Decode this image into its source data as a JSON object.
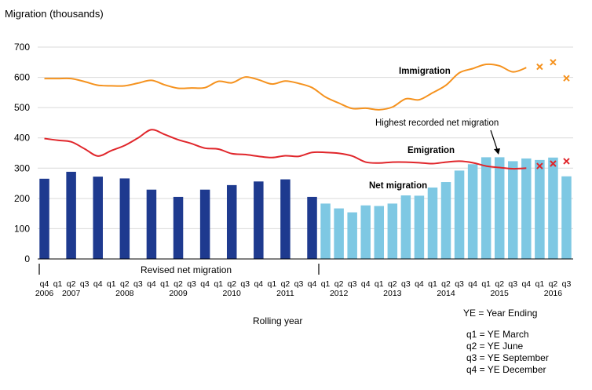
{
  "chart_data": {
    "type": "bar",
    "ylabel": "Migration (thousands)",
    "xlabel": "Rolling year",
    "ylim": [
      0,
      700
    ],
    "yticks": [
      0,
      100,
      200,
      300,
      400,
      500,
      600,
      700
    ],
    "grid": true,
    "quarters": [
      "q4",
      "q1",
      "q2",
      "q3",
      "q4",
      "q1",
      "q2",
      "q3",
      "q4",
      "q1",
      "q2",
      "q3",
      "q4",
      "q1",
      "q2",
      "q3",
      "q4",
      "q1",
      "q2",
      "q3",
      "q4",
      "q1",
      "q2",
      "q3",
      "q4",
      "q1",
      "q2",
      "q3",
      "q4",
      "q1",
      "q2",
      "q3",
      "q4",
      "q1",
      "q2",
      "q3",
      "q4",
      "q1",
      "q2",
      "q3"
    ],
    "years": [
      {
        "label": "2006",
        "index": 0
      },
      {
        "label": "2007",
        "index": 2
      },
      {
        "label": "2008",
        "index": 6
      },
      {
        "label": "2009",
        "index": 10
      },
      {
        "label": "2010",
        "index": 14
      },
      {
        "label": "2011",
        "index": 18
      },
      {
        "label": "2012",
        "index": 22
      },
      {
        "label": "2013",
        "index": 26
      },
      {
        "label": "2014",
        "index": 30
      },
      {
        "label": "2015",
        "index": 34
      },
      {
        "label": "2016",
        "index": 38
      }
    ],
    "net_migration_revised": [
      {
        "i": 0,
        "value": 265
      },
      {
        "i": 2,
        "value": 288
      },
      {
        "i": 4,
        "value": 272
      },
      {
        "i": 6,
        "value": 266
      },
      {
        "i": 8,
        "value": 229
      },
      {
        "i": 10,
        "value": 205
      },
      {
        "i": 12,
        "value": 229
      },
      {
        "i": 14,
        "value": 244
      },
      {
        "i": 16,
        "value": 256
      },
      {
        "i": 18,
        "value": 263
      },
      {
        "i": 20,
        "value": 205
      }
    ],
    "net_migration": [
      {
        "i": 21,
        "value": 183
      },
      {
        "i": 22,
        "value": 167
      },
      {
        "i": 23,
        "value": 154
      },
      {
        "i": 24,
        "value": 177
      },
      {
        "i": 25,
        "value": 175
      },
      {
        "i": 26,
        "value": 183
      },
      {
        "i": 27,
        "value": 210
      },
      {
        "i": 28,
        "value": 209
      },
      {
        "i": 29,
        "value": 236
      },
      {
        "i": 30,
        "value": 254
      },
      {
        "i": 31,
        "value": 292
      },
      {
        "i": 32,
        "value": 313
      },
      {
        "i": 33,
        "value": 336
      },
      {
        "i": 34,
        "value": 336
      },
      {
        "i": 35,
        "value": 323
      },
      {
        "i": 36,
        "value": 332
      },
      {
        "i": 37,
        "value": 327
      },
      {
        "i": 38,
        "value": 335
      },
      {
        "i": 39,
        "value": 273
      }
    ],
    "immigration": [
      596,
      596,
      596,
      586,
      574,
      572,
      572,
      581,
      590,
      575,
      564,
      565,
      566,
      587,
      582,
      601,
      592,
      578,
      588,
      580,
      566,
      535,
      515,
      497,
      498,
      493,
      502,
      529,
      526,
      549,
      574,
      615,
      629,
      643,
      638,
      618,
      632
    ],
    "immigration_provisional": [
      {
        "i": 37,
        "value": 635
      },
      {
        "i": 38,
        "value": 650
      },
      {
        "i": 39,
        "value": 597
      }
    ],
    "emigration": [
      398,
      392,
      387,
      364,
      340,
      358,
      375,
      400,
      427,
      411,
      394,
      381,
      366,
      363,
      348,
      345,
      339,
      335,
      341,
      339,
      352,
      352,
      349,
      340,
      320,
      317,
      320,
      320,
      318,
      315,
      320,
      323,
      318,
      307,
      302,
      298,
      300
    ],
    "emigration_provisional": [
      {
        "i": 37,
        "value": 307
      },
      {
        "i": 38,
        "value": 315
      },
      {
        "i": 39,
        "value": 323
      }
    ],
    "labels": {
      "immigration": "Immigration",
      "emigration": "Emigration",
      "net_migration": "Net migration",
      "revised": "Revised net migration",
      "highest": "Highest recorded net migration"
    },
    "key": {
      "ye": "YE = Year Ending",
      "q1": "q1 = YE March",
      "q2": "q2 = YE June",
      "q3": "q3 = YE September",
      "q4": "q4 = YE December"
    },
    "colors": {
      "revised_bar": "#1e3a8f",
      "bar": "#7ec8e3",
      "immigration": "#f5921e",
      "emigration": "#e0262b",
      "grid": "#d9d9d9"
    }
  }
}
